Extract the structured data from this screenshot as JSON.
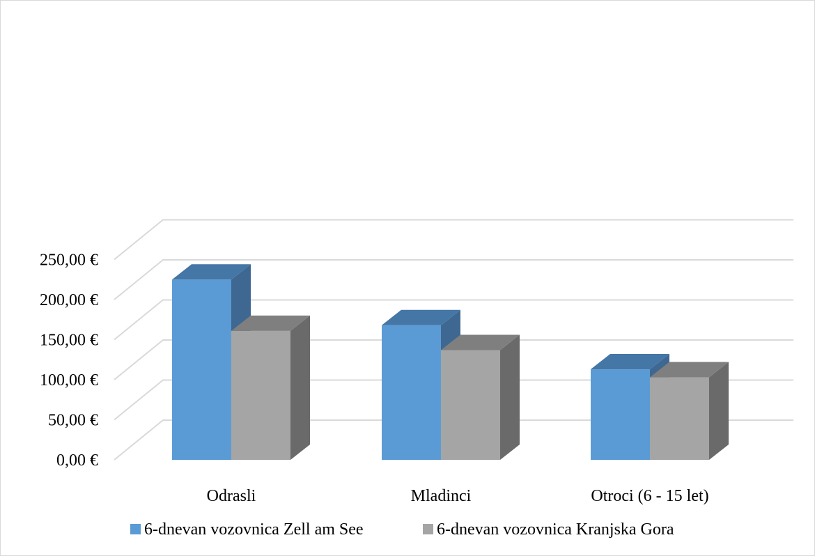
{
  "chart_data": {
    "type": "bar",
    "style": "3d-clustered-column",
    "categories": [
      "Odrasli",
      "Mladinci",
      "Otroci (6 - 15 let)"
    ],
    "series": [
      {
        "name": "6-dnevan vozovnica Zell am See",
        "values": [
          225,
          168,
          113
        ],
        "color": "#5b9bd5",
        "side_color": "#3e6891",
        "top_color": "#4476a6"
      },
      {
        "name": "6-dnevan vozovnica Kranjska Gora",
        "values": [
          161,
          137,
          103
        ],
        "color": "#a5a5a5",
        "side_color": "#6a6a6a",
        "top_color": "#7f7f7f"
      }
    ],
    "ylim": [
      0,
      250
    ],
    "yticks": [
      0,
      50,
      100,
      150,
      200,
      250
    ],
    "ytick_labels": [
      "0,00 €",
      "50,00 €",
      "100,00 €",
      "150,00 €",
      "200,00 €",
      "250,00 €"
    ],
    "grid": true,
    "legend_position": "bottom",
    "gridline_color": "#d9d9d9"
  }
}
